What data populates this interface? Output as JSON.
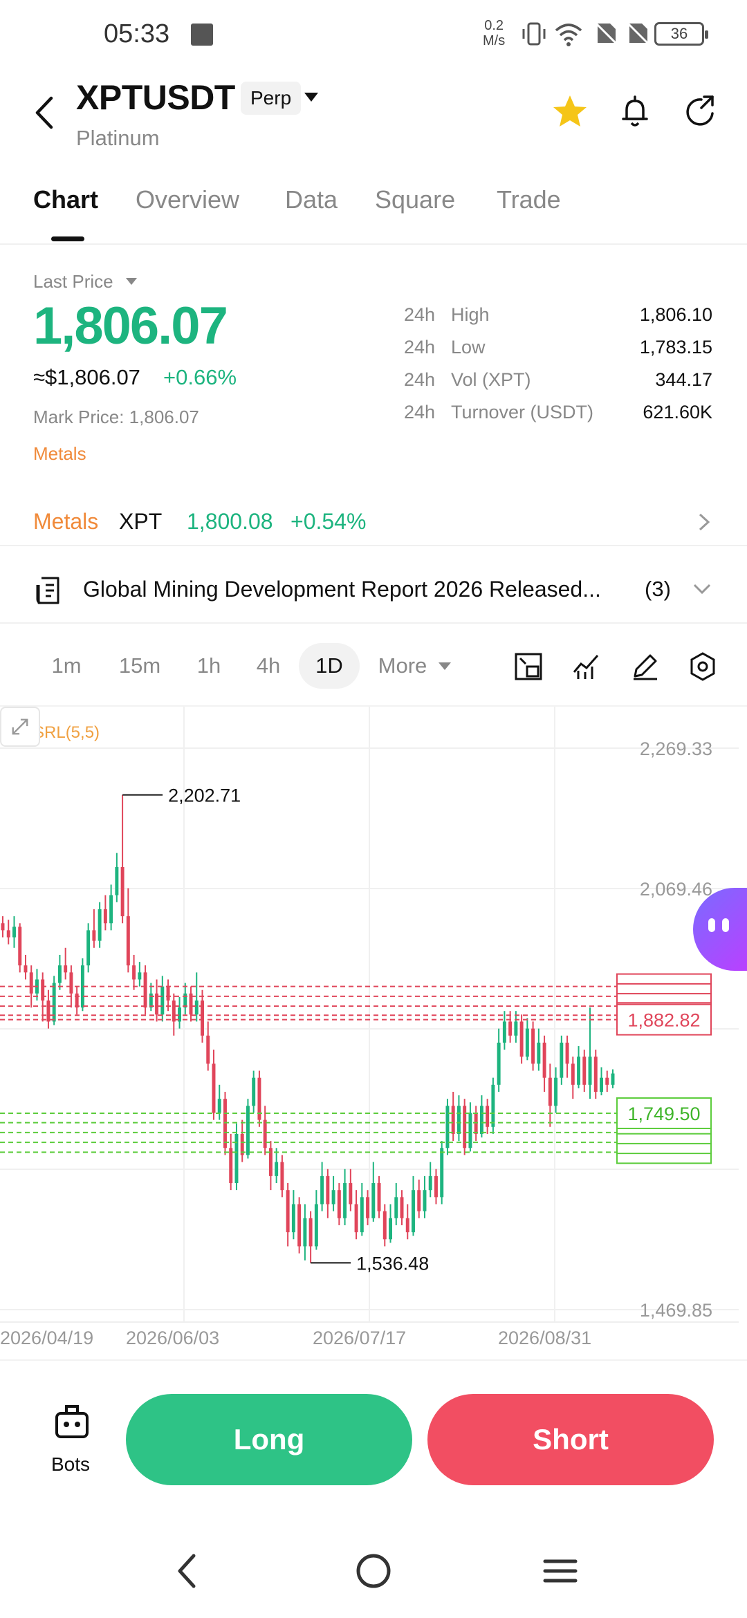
{
  "status_bar": {
    "time": "05:33",
    "net_speed_value": "0.2",
    "net_speed_unit": "M/s",
    "battery": "36"
  },
  "header": {
    "symbol": "XPTUSDT",
    "contract_type": "Perp",
    "name": "Platinum"
  },
  "tabs": [
    {
      "label": "Chart"
    },
    {
      "label": "Overview"
    },
    {
      "label": "Data"
    },
    {
      "label": "Square"
    },
    {
      "label": "Trade"
    }
  ],
  "price": {
    "label": "Last Price",
    "last": "1,806.07",
    "usd": "≈$1,806.07",
    "change": "+0.66%",
    "mark": "Mark Price: 1,806.07",
    "tag": "Metals"
  },
  "stats": [
    {
      "prefix": "24h",
      "label": "High",
      "value": "1,806.10"
    },
    {
      "prefix": "24h",
      "label": "Low",
      "value": "1,783.15"
    },
    {
      "prefix": "24h",
      "label": "Vol (XPT)",
      "value": "344.17"
    },
    {
      "prefix": "24h",
      "label": "Turnover (USDT)",
      "value": "621.60K"
    }
  ],
  "metals_row": {
    "category": "Metals",
    "symbol": "XPT",
    "price": "1,800.08",
    "change": "+0.54%"
  },
  "news": {
    "headline": "Global Mining Development Report 2026 Released...",
    "count": "(3)"
  },
  "timeframes": {
    "items": [
      "1m",
      "15m",
      "1h",
      "4h",
      "1D"
    ],
    "active": "1D",
    "more": "More"
  },
  "chart_data": {
    "type": "candlestick",
    "indicator": "SRL(5,5)",
    "y_ticks": [
      "2,269.33",
      "2,069.46",
      "1,469.85"
    ],
    "ylim": [
      1469.85,
      2269.33
    ],
    "x_ticks": [
      "2026/04/19",
      "2026/06/03",
      "2026/07/17",
      "2026/08/31"
    ],
    "annotations": {
      "high": "2,202.71",
      "low": "1,536.48"
    },
    "resistance_label": "1,882.82",
    "resistance_levels": [
      1930,
      1916,
      1902,
      1889,
      1882.82
    ],
    "support_label": "1,749.50",
    "support_levels": [
      1749.5,
      1736,
      1722,
      1708,
      1694
    ],
    "candles": [
      [
        2020,
        2010,
        2030,
        2000
      ],
      [
        2010,
        2000,
        2025,
        1990
      ],
      [
        2000,
        2015,
        2030,
        1985
      ],
      [
        2015,
        1960,
        2020,
        1950
      ],
      [
        1960,
        1950,
        1975,
        1940
      ],
      [
        1950,
        1920,
        1960,
        1900
      ],
      [
        1920,
        1940,
        1955,
        1910
      ],
      [
        1940,
        1910,
        1950,
        1880
      ],
      [
        1910,
        1880,
        1925,
        1870
      ],
      [
        1880,
        1935,
        1945,
        1875
      ],
      [
        1935,
        1960,
        1975,
        1925
      ],
      [
        1960,
        1950,
        1985,
        1940
      ],
      [
        1950,
        1920,
        1960,
        1900
      ],
      [
        1920,
        1900,
        1930,
        1890
      ],
      [
        1900,
        1960,
        1970,
        1895
      ],
      [
        1960,
        2010,
        2020,
        1950
      ],
      [
        2010,
        1995,
        2040,
        1985
      ],
      [
        1995,
        2040,
        2050,
        1985
      ],
      [
        2040,
        2020,
        2060,
        2010
      ],
      [
        2020,
        2060,
        2075,
        2010
      ],
      [
        2060,
        2100,
        2120,
        2050
      ],
      [
        2100,
        2030,
        2202.71,
        2020
      ],
      [
        2030,
        1960,
        2070,
        1950
      ],
      [
        1960,
        1940,
        1975,
        1925
      ],
      [
        1940,
        1950,
        1965,
        1930
      ],
      [
        1950,
        1900,
        1960,
        1890
      ],
      [
        1900,
        1920,
        1935,
        1895
      ],
      [
        1920,
        1890,
        1940,
        1880
      ],
      [
        1890,
        1930,
        1945,
        1880
      ],
      [
        1930,
        1910,
        1940,
        1895
      ],
      [
        1910,
        1880,
        1920,
        1860
      ],
      [
        1880,
        1900,
        1915,
        1870
      ],
      [
        1900,
        1920,
        1935,
        1890
      ],
      [
        1920,
        1890,
        1930,
        1880
      ],
      [
        1890,
        1910,
        1950,
        1880
      ],
      [
        1910,
        1860,
        1925,
        1850
      ],
      [
        1860,
        1820,
        1880,
        1810
      ],
      [
        1820,
        1750,
        1840,
        1740
      ],
      [
        1750,
        1770,
        1790,
        1740
      ],
      [
        1770,
        1700,
        1780,
        1690
      ],
      [
        1700,
        1650,
        1720,
        1640
      ],
      [
        1650,
        1720,
        1735,
        1640
      ],
      [
        1720,
        1690,
        1740,
        1680
      ],
      [
        1690,
        1760,
        1770,
        1685
      ],
      [
        1760,
        1800,
        1810,
        1750
      ],
      [
        1800,
        1740,
        1810,
        1730
      ],
      [
        1740,
        1700,
        1760,
        1690
      ],
      [
        1700,
        1660,
        1710,
        1640
      ],
      [
        1660,
        1680,
        1700,
        1650
      ],
      [
        1680,
        1640,
        1690,
        1630
      ],
      [
        1640,
        1580,
        1650,
        1560
      ],
      [
        1580,
        1620,
        1640,
        1570
      ],
      [
        1620,
        1560,
        1630,
        1550
      ],
      [
        1560,
        1600,
        1620,
        1540
      ],
      [
        1600,
        1560,
        1610,
        1536.48
      ],
      [
        1560,
        1620,
        1640,
        1555
      ],
      [
        1620,
        1660,
        1680,
        1610
      ],
      [
        1660,
        1620,
        1670,
        1600
      ],
      [
        1620,
        1640,
        1660,
        1610
      ],
      [
        1640,
        1600,
        1650,
        1590
      ],
      [
        1600,
        1650,
        1670,
        1590
      ],
      [
        1650,
        1620,
        1670,
        1610
      ],
      [
        1620,
        1580,
        1640,
        1570
      ],
      [
        1580,
        1630,
        1650,
        1575
      ],
      [
        1630,
        1600,
        1640,
        1590
      ],
      [
        1600,
        1650,
        1680,
        1595
      ],
      [
        1650,
        1610,
        1660,
        1600
      ],
      [
        1610,
        1570,
        1620,
        1560
      ],
      [
        1570,
        1600,
        1620,
        1565
      ],
      [
        1600,
        1630,
        1650,
        1590
      ],
      [
        1630,
        1600,
        1640,
        1590
      ],
      [
        1600,
        1580,
        1620,
        1570
      ],
      [
        1580,
        1640,
        1660,
        1575
      ],
      [
        1640,
        1610,
        1655,
        1600
      ],
      [
        1610,
        1640,
        1660,
        1600
      ],
      [
        1640,
        1660,
        1680,
        1630
      ],
      [
        1660,
        1630,
        1670,
        1620
      ],
      [
        1630,
        1700,
        1710,
        1620
      ],
      [
        1700,
        1760,
        1770,
        1690
      ],
      [
        1760,
        1720,
        1780,
        1710
      ],
      [
        1720,
        1760,
        1775,
        1710
      ],
      [
        1760,
        1700,
        1770,
        1690
      ],
      [
        1700,
        1750,
        1765,
        1695
      ],
      [
        1750,
        1720,
        1760,
        1710
      ],
      [
        1720,
        1760,
        1775,
        1715
      ],
      [
        1760,
        1730,
        1770,
        1720
      ],
      [
        1730,
        1790,
        1800,
        1720
      ],
      [
        1790,
        1850,
        1870,
        1780
      ],
      [
        1850,
        1880,
        1895,
        1840
      ],
      [
        1880,
        1860,
        1895,
        1850
      ],
      [
        1860,
        1880,
        1895,
        1850
      ],
      [
        1880,
        1830,
        1890,
        1820
      ],
      [
        1830,
        1870,
        1885,
        1825
      ],
      [
        1870,
        1820,
        1880,
        1810
      ],
      [
        1820,
        1850,
        1870,
        1810
      ],
      [
        1850,
        1800,
        1860,
        1780
      ],
      [
        1800,
        1760,
        1820,
        1730
      ],
      [
        1760,
        1800,
        1815,
        1750
      ],
      [
        1800,
        1850,
        1860,
        1790
      ],
      [
        1850,
        1820,
        1860,
        1800
      ],
      [
        1820,
        1790,
        1830,
        1770
      ],
      [
        1790,
        1830,
        1845,
        1785
      ],
      [
        1830,
        1790,
        1840,
        1780
      ],
      [
        1790,
        1830,
        1900,
        1770
      ],
      [
        1830,
        1780,
        1840,
        1770
      ],
      [
        1780,
        1800,
        1815,
        1775
      ],
      [
        1800,
        1790,
        1810,
        1780
      ],
      [
        1790,
        1806.07,
        1812,
        1785
      ]
    ]
  },
  "bottom_bar": {
    "bots_label": "Bots",
    "long_label": "Long",
    "short_label": "Short"
  },
  "colors": {
    "up": "#1db47f",
    "down": "#e0455a",
    "long": "#2ec386",
    "short": "#f24e62",
    "metals": "#f08a3a"
  }
}
